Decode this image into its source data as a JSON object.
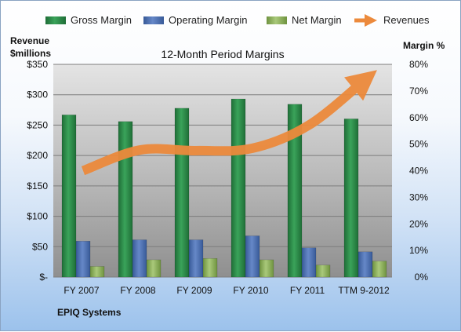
{
  "company": "EPIQ Systems",
  "legend": {
    "gross": "Gross Margin",
    "operating": "Operating Margin",
    "net": "Net Margin",
    "revenues": "Revenues"
  },
  "colors": {
    "gross": "#2e8b4a",
    "operating": "#4f74b8",
    "net": "#8fb35a",
    "revenues": "#ec8a3c"
  },
  "chart_data": {
    "type": "bar",
    "title": "12-Month Period Margins",
    "ylabel_left_line1": "Revenue",
    "ylabel_left_line2": "$millions",
    "ylabel_right": "Margin %",
    "categories": [
      "FY 2007",
      "FY 2008",
      "FY 2009",
      "FY 2010",
      "FY 2011",
      "TTM 9-2012"
    ],
    "left_axis": {
      "min": 0,
      "max": 350,
      "ticks": [
        "$-",
        "$50",
        "$100",
        "$150",
        "$200",
        "$250",
        "$300",
        "$350"
      ]
    },
    "right_axis": {
      "min": 0,
      "max": 80,
      "ticks": [
        "0%",
        "10%",
        "20%",
        "30%",
        "40%",
        "50%",
        "60%",
        "70%",
        "80%"
      ]
    },
    "series": [
      {
        "name": "Gross Margin",
        "axis": "right",
        "values": [
          61,
          58.5,
          63.5,
          67,
          65,
          59.5
        ]
      },
      {
        "name": "Operating Margin",
        "axis": "right",
        "values": [
          13.5,
          14,
          14,
          15.5,
          11,
          9.5
        ]
      },
      {
        "name": "Net Margin",
        "axis": "right",
        "values": [
          4,
          6.5,
          7,
          6.5,
          4.5,
          6
        ]
      },
      {
        "name": "Revenues",
        "type": "line",
        "axis": "left",
        "values": [
          175,
          209,
          208,
          212,
          250,
          325
        ]
      }
    ],
    "grid": true,
    "legend_position": "top"
  }
}
